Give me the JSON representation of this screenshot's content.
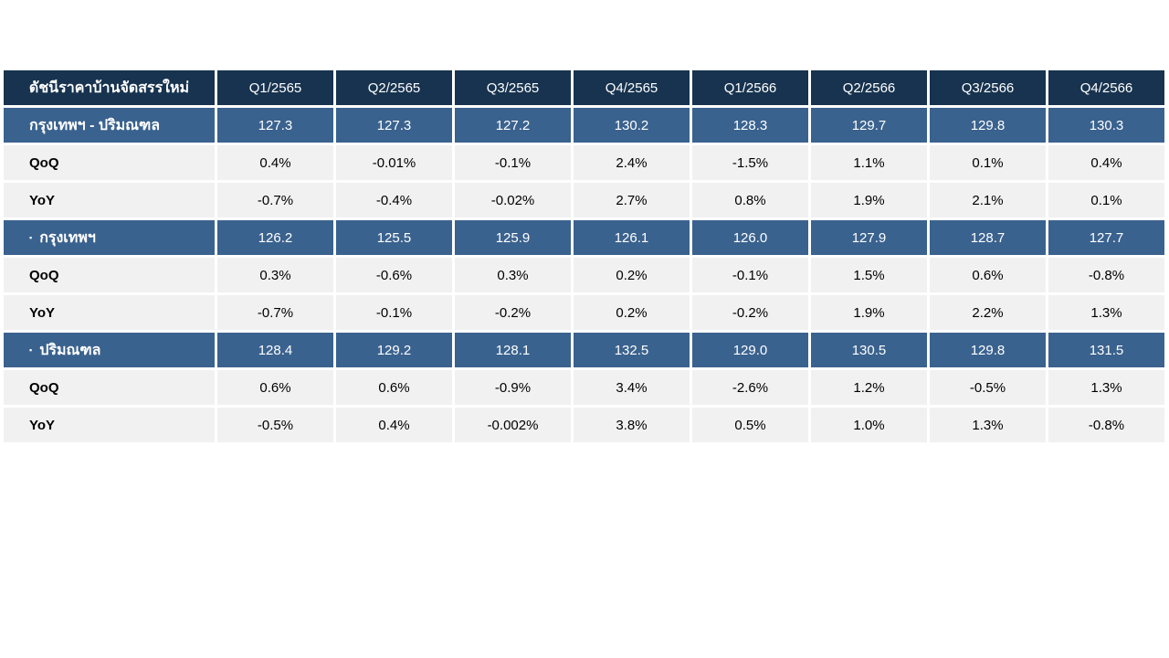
{
  "table": {
    "title": "ดัชนีราคาบ้านจัดสรรใหม่",
    "bullet_icon": "▪",
    "quarters": [
      "Q1/2565",
      "Q2/2565",
      "Q3/2565",
      "Q4/2565",
      "Q1/2566",
      "Q2/2566",
      "Q3/2566",
      "Q4/2566"
    ],
    "sections": [
      {
        "label": "กรุงเทพฯ - ปริมณฑล",
        "bullet": false,
        "index_values": [
          "127.3",
          "127.3",
          "127.2",
          "130.2",
          "128.3",
          "129.7",
          "129.8",
          "130.3"
        ],
        "rows": [
          {
            "label": "QoQ",
            "values": [
              "0.4%",
              "-0.01%",
              "-0.1%",
              "2.4%",
              "-1.5%",
              "1.1%",
              "0.1%",
              "0.4%"
            ]
          },
          {
            "label": "YoY",
            "values": [
              "-0.7%",
              "-0.4%",
              "-0.02%",
              "2.7%",
              "0.8%",
              "1.9%",
              "2.1%",
              "0.1%"
            ]
          }
        ]
      },
      {
        "label": "กรุงเทพฯ",
        "bullet": true,
        "index_values": [
          "126.2",
          "125.5",
          "125.9",
          "126.1",
          "126.0",
          "127.9",
          "128.7",
          "127.7"
        ],
        "rows": [
          {
            "label": "QoQ",
            "values": [
              "0.3%",
              "-0.6%",
              "0.3%",
              "0.2%",
              "-0.1%",
              "1.5%",
              "0.6%",
              "-0.8%"
            ]
          },
          {
            "label": "YoY",
            "values": [
              "-0.7%",
              "-0.1%",
              "-0.2%",
              "0.2%",
              "-0.2%",
              "1.9%",
              "2.2%",
              "1.3%"
            ]
          }
        ]
      },
      {
        "label": "ปริมณฑล",
        "bullet": true,
        "index_values": [
          "128.4",
          "129.2",
          "128.1",
          "132.5",
          "129.0",
          "130.5",
          "129.8",
          "131.5"
        ],
        "rows": [
          {
            "label": "QoQ",
            "values": [
              "0.6%",
              "0.6%",
              "-0.9%",
              "3.4%",
              "-2.6%",
              "1.2%",
              "-0.5%",
              "1.3%"
            ]
          },
          {
            "label": "YoY",
            "values": [
              "-0.5%",
              "0.4%",
              "-0.002%",
              "3.8%",
              "0.5%",
              "1.0%",
              "1.3%",
              "-0.8%"
            ]
          }
        ]
      }
    ]
  },
  "colors": {
    "header_bg": "#17334F",
    "section_bg": "#3A628E",
    "data_row_bg": "#F1F1F1",
    "negative_value": "#FF0000",
    "positive_value": "#000000",
    "header_text": "#FFFFFF",
    "page_bg": "#FFFFFF"
  }
}
